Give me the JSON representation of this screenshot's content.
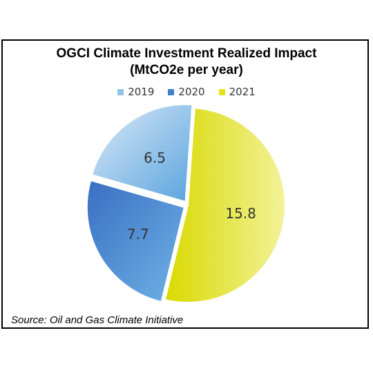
{
  "chart_data": {
    "type": "pie",
    "title": "OGCI Climate Investment Realized Impact",
    "subtitle": "(MtCO2e per year)",
    "categories": [
      "2019",
      "2020",
      "2021"
    ],
    "values": [
      6.5,
      7.7,
      15.8
    ],
    "data_labels": [
      "6.5",
      "7.7",
      "15.8"
    ],
    "colors": [
      "#8fc3ea",
      "#3f7fcc",
      "#e3e31a"
    ],
    "legend_placement": "top"
  },
  "source": "Source: Oil and Gas Climate Initiative"
}
